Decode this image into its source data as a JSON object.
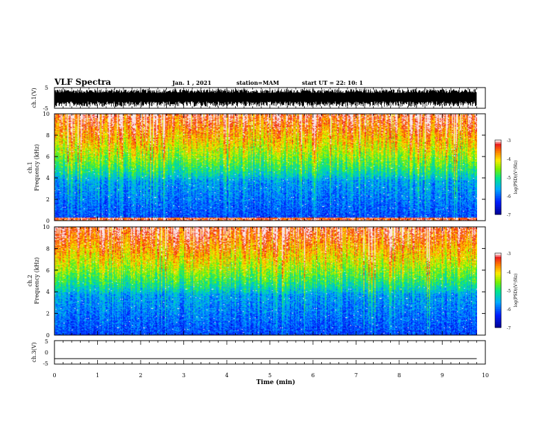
{
  "header": {
    "title": "VLF Spectra",
    "date": "Jan. 1 , 2021",
    "station": "station=MAM",
    "start": "start UT =  22: 10: 1"
  },
  "chart_data": [
    {
      "type": "line",
      "id": "ch1-voltage",
      "ylabel": "ch.1(V)",
      "ylim": [
        -5,
        5
      ],
      "yticks": [
        "5",
        "-5"
      ],
      "xlim": [
        0,
        10
      ],
      "description_values": "dense high-amplitude noise trace"
    },
    {
      "type": "heatmap",
      "id": "ch1-spectrogram",
      "ylabel_line1": "ch.1",
      "ylabel_line2": "Frequency (kHz)",
      "ylim": [
        0,
        10
      ],
      "yticks": [
        "10",
        "8",
        "6",
        "4",
        "2",
        "0"
      ],
      "xlim": [
        0,
        9.8
      ],
      "colorbar": {
        "label": "log(PSD)(V²/Hz)",
        "range": [
          -7,
          -3
        ],
        "ticks": [
          "-3",
          "-4",
          "-5",
          "-6",
          "-7"
        ]
      }
    },
    {
      "type": "heatmap",
      "id": "ch2-spectrogram",
      "ylabel_line1": "ch.2",
      "ylabel_line2": "Frequency (kHz)",
      "ylim": [
        0,
        10
      ],
      "yticks": [
        "10",
        "8",
        "6",
        "4",
        "2",
        "0"
      ],
      "xlim": [
        0,
        9.8
      ],
      "colorbar": {
        "label": "log(PSD)(V²/Hz)",
        "range": [
          -7,
          -3
        ],
        "ticks": [
          "-3",
          "-4",
          "-5",
          "-6",
          "-7"
        ]
      }
    },
    {
      "type": "line",
      "id": "ch3-voltage",
      "ylabel": "ch.3(V)",
      "ylim": [
        -5,
        5
      ],
      "yticks": [
        "5",
        "0",
        "-5"
      ],
      "x": [
        0,
        9.8
      ],
      "y": [
        -2.7,
        -2.7
      ]
    }
  ],
  "xaxis": {
    "label": "Time (min)",
    "ticks": [
      "0",
      "1",
      "2",
      "3",
      "4",
      "5",
      "6",
      "7",
      "8",
      "9",
      "10"
    ],
    "range": [
      0,
      10
    ]
  }
}
